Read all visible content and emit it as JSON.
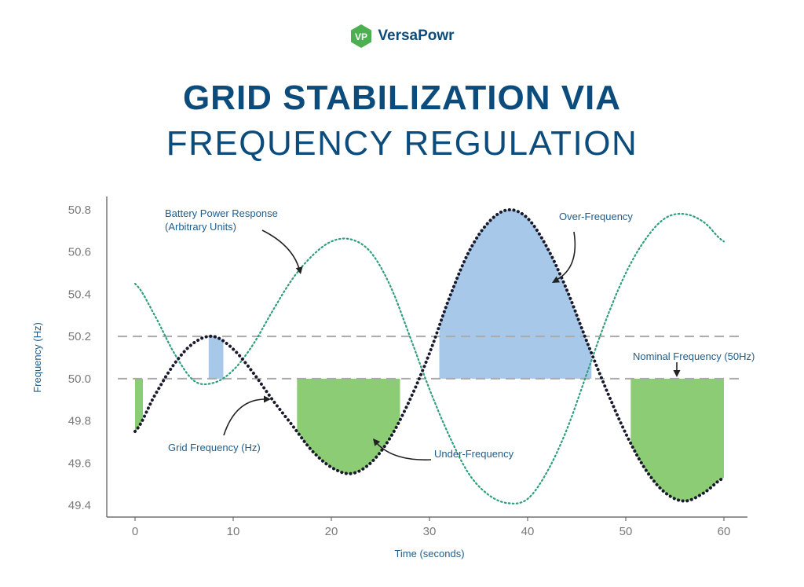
{
  "brand": {
    "name": "VersaPowr",
    "logo_letters": "VP",
    "color": "#0c4c7c",
    "accent": "#4caf50"
  },
  "title": {
    "line1": "GRID STABILIZATION VIA",
    "line2": "FREQUENCY REGULATION"
  },
  "chart_data": {
    "type": "line",
    "title": "GRID STABILIZATION VIA FREQUENCY REGULATION",
    "xlabel": "Time (seconds)",
    "ylabel": "Frequency (Hz)",
    "xlim": [
      0,
      60
    ],
    "ylim": [
      49.4,
      50.8
    ],
    "x_ticks": [
      0,
      10,
      20,
      30,
      40,
      50,
      60
    ],
    "x_tick_labels": [
      "0",
      "10",
      "20",
      "30",
      "40",
      "50",
      "60"
    ],
    "y_ticks": [
      50.8,
      50.6,
      50.4,
      50.2,
      50.0,
      49.8,
      49.6,
      49.4
    ],
    "y_tick_labels": [
      "50.8",
      "50.6",
      "50.4",
      "50.2",
      "50.0",
      "49.8",
      "49.6",
      "49.4"
    ],
    "reference_lines": [
      {
        "name": "Nominal Frequency",
        "y": 50.0
      },
      {
        "name": "Upper Band",
        "y": 50.2
      }
    ],
    "series": [
      {
        "name": "Grid Frequency (Hz)",
        "style": "dotted",
        "color": "#1a1a2e",
        "x": [
          0,
          2,
          4,
          6,
          8,
          10,
          12,
          14,
          16,
          18,
          20,
          22,
          24,
          26,
          28,
          30,
          32,
          34,
          36,
          38,
          40,
          42,
          44,
          46,
          48,
          50,
          52,
          54,
          56,
          58,
          60
        ],
        "y": [
          49.75,
          49.92,
          50.07,
          50.17,
          50.2,
          50.14,
          50.03,
          49.9,
          49.78,
          49.66,
          49.58,
          49.55,
          49.6,
          49.72,
          49.9,
          50.12,
          50.38,
          50.6,
          50.74,
          50.8,
          50.76,
          50.62,
          50.42,
          50.18,
          49.95,
          49.74,
          49.57,
          49.46,
          49.42,
          49.46,
          49.53
        ]
      },
      {
        "name": "Battery Power Response (Arbitrary Units)",
        "style": "dotted",
        "color": "#2e9e7e",
        "x": [
          0,
          2,
          4,
          6,
          8,
          10,
          12,
          14,
          16,
          18,
          20,
          22,
          24,
          26,
          28,
          30,
          32,
          34,
          36,
          38,
          40,
          42,
          44,
          46,
          48,
          50,
          52,
          54,
          56,
          58,
          60
        ],
        "y": [
          50.45,
          50.3,
          50.12,
          49.99,
          49.98,
          50.04,
          50.16,
          50.32,
          50.47,
          50.58,
          50.65,
          50.66,
          50.6,
          50.44,
          50.2,
          49.95,
          49.73,
          49.55,
          49.45,
          49.41,
          49.43,
          49.56,
          49.76,
          50.02,
          50.28,
          50.5,
          50.66,
          50.76,
          50.78,
          50.74,
          50.65
        ]
      }
    ],
    "shaded_regions": [
      {
        "label": "Under-Frequency",
        "type": "under",
        "x_start": 0,
        "x_end": 0.8,
        "color": "#8ccc74"
      },
      {
        "label": "Over-Frequency",
        "type": "over",
        "x_start": 7.5,
        "x_end": 9,
        "color": "#a7c8e8"
      },
      {
        "label": "Under-Frequency",
        "type": "under",
        "x_start": 16.5,
        "x_end": 27,
        "color": "#8ccc74"
      },
      {
        "label": "Over-Frequency",
        "type": "over",
        "x_start": 31,
        "x_end": 46.5,
        "color": "#a7c8e8"
      },
      {
        "label": "Under-Frequency",
        "type": "under",
        "x_start": 50.5,
        "x_end": 60,
        "color": "#8ccc74"
      }
    ],
    "annotations": [
      {
        "id": "battery",
        "text_lines": [
          "Battery Power Response",
          "(Arbitrary Units)"
        ]
      },
      {
        "id": "over",
        "text_lines": [
          "Over-Frequency"
        ]
      },
      {
        "id": "nominal",
        "text_lines": [
          "Nominal Frequency (50Hz)"
        ]
      },
      {
        "id": "grid",
        "text_lines": [
          "Grid Frequency (Hz)"
        ]
      },
      {
        "id": "under",
        "text_lines": [
          "Under-Frequency"
        ]
      }
    ]
  }
}
